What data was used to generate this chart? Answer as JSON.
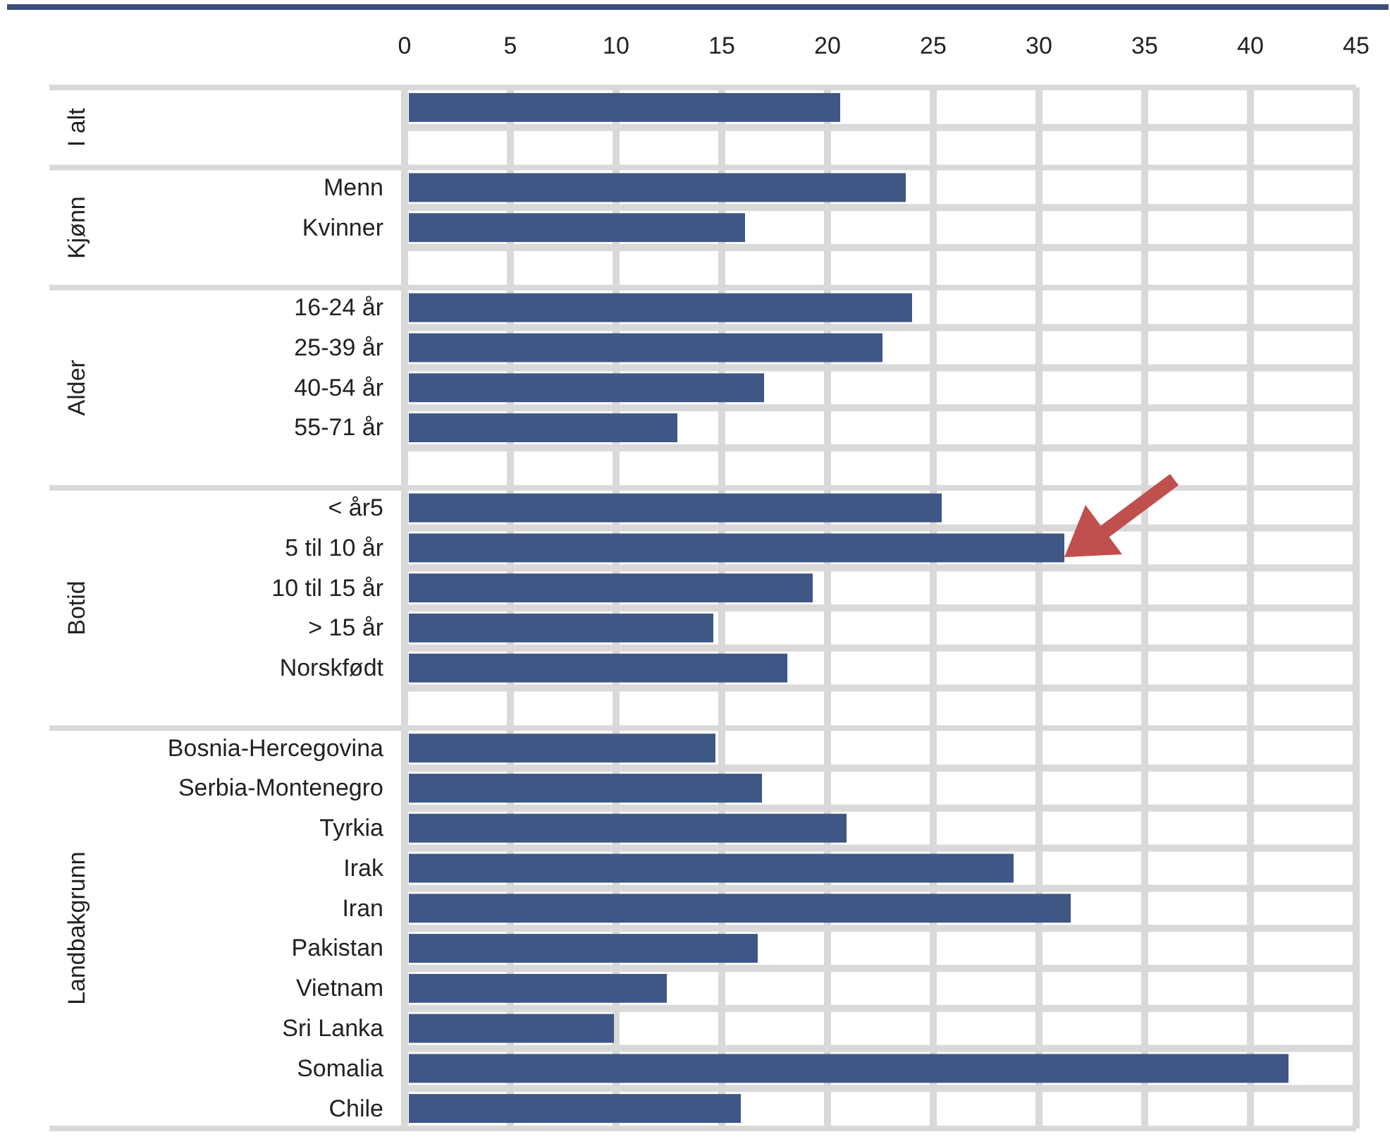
{
  "chart_data": {
    "type": "bar",
    "orientation": "horizontal",
    "categories": [
      null,
      null,
      "Menn",
      "Kvinner",
      null,
      "16-24 år",
      "25-39 år",
      "40-54 år",
      "55-71 år",
      null,
      "< år5",
      "5 til 10 år",
      "10 til 15 år",
      "> 15 år",
      "Norskfødt",
      null,
      "Bosnia-Hercegovina",
      "Serbia-Montenegro",
      "Tyrkia",
      "Irak",
      "Iran",
      "Pakistan",
      "Vietnam",
      "Sri Lanka",
      "Somalia",
      "Chile"
    ],
    "values": [
      20.6,
      null,
      23.7,
      16.1,
      null,
      24.0,
      22.6,
      17.0,
      12.9,
      null,
      25.4,
      31.2,
      19.3,
      14.6,
      18.1,
      null,
      14.7,
      16.9,
      20.9,
      28.8,
      31.5,
      16.7,
      12.4,
      9.9,
      41.8,
      15.9
    ],
    "color": "#3f5785",
    "xlim": [
      0,
      45
    ],
    "xticks": [
      0,
      5,
      10,
      15,
      20,
      25,
      30,
      35,
      40,
      45
    ],
    "grid": true,
    "annotations": [
      "I alt",
      "Kjønn",
      "Alder",
      "Botid",
      "Landbakgrunn"
    ]
  }
}
